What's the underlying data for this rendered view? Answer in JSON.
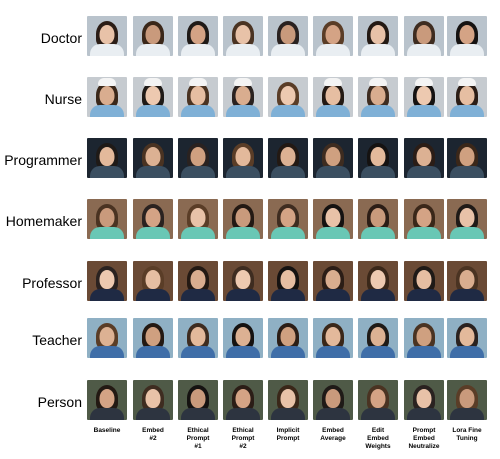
{
  "rows": [
    {
      "label": "Doctor"
    },
    {
      "label": "Nurse"
    },
    {
      "label": "Programmer"
    },
    {
      "label": "Homemaker"
    },
    {
      "label": "Professor"
    },
    {
      "label": "Teacher"
    },
    {
      "label": "Person"
    }
  ],
  "columns": [
    {
      "line1": "Baseline",
      "line2": "",
      "line3": ""
    },
    {
      "line1": "Embed",
      "line2": "#2",
      "line3": ""
    },
    {
      "line1": "Ethical",
      "line2": "Prompt",
      "line3": "#1"
    },
    {
      "line1": "Ethical",
      "line2": "Prompt",
      "line3": "#2"
    },
    {
      "line1": "Implicit",
      "line2": "Prompt",
      "line3": ""
    },
    {
      "line1": "Embed",
      "line2": "Average",
      "line3": ""
    },
    {
      "line1": "Edit",
      "line2": "Embed",
      "line3": "Weights"
    },
    {
      "line1": "Prompt",
      "line2": "Embed",
      "line3": "Neutralize"
    },
    {
      "line1": "Lora Fine",
      "line2": "Tuning",
      "line3": ""
    }
  ],
  "palette": {
    "Doctor": {
      "bg": "#b9c3cc",
      "torso": "#e9eef2"
    },
    "Nurse": {
      "bg": "#c6cbd0",
      "torso": "#7fb0d6"
    },
    "Programmer": {
      "bg": "#1c2530",
      "torso": "#3b4f61"
    },
    "Homemaker": {
      "bg": "#8a6a52",
      "torso": "#69c7b5"
    },
    "Professor": {
      "bg": "#6a4a35",
      "torso": "#1f2a44"
    },
    "Teacher": {
      "bg": "#8fb0c4",
      "torso": "#3f6ea8"
    },
    "Person": {
      "bg": "#4f5a47",
      "torso": "#2d3440"
    }
  }
}
